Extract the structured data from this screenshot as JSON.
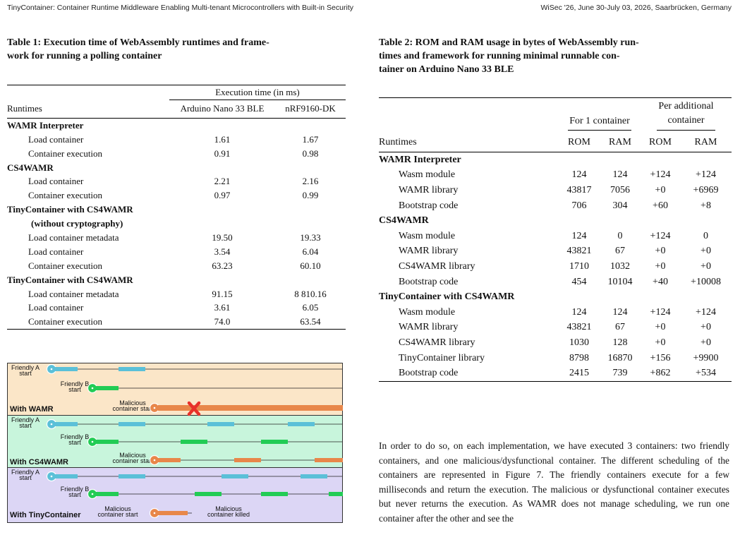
{
  "header": {
    "left": "TinyContainer: Container Runtime Middleware Enabling Multi-tenant Microcontrollers with Built-in Security",
    "right": "WiSec '26, June 30-July 03, 2026, Saarbrücken, Germany"
  },
  "table1": {
    "caption_line1": "Table 1: Execution time of WebAssembly runtimes and frame-",
    "caption_line2": "work for running a polling container",
    "group_header": "Execution time (in ms)",
    "col_runtimes": "Runtimes",
    "col_a": "Arduino Nano 33 BLE",
    "col_b": "nRF9160-DK",
    "rows": [
      {
        "label": "WAMR Interpreter",
        "group": true
      },
      {
        "label": "Load container",
        "a": "1.61",
        "b": "1.67"
      },
      {
        "label": "Container execution",
        "a": "0.91",
        "b": "0.98"
      },
      {
        "label": "CS4WAMR",
        "group": true
      },
      {
        "label": "Load container",
        "a": "2.21",
        "b": "2.16"
      },
      {
        "label": "Container execution",
        "a": "0.97",
        "b": "0.99"
      },
      {
        "label": "TinyContainer with CS4WAMR",
        "group": true
      },
      {
        "label": "(without cryptography)",
        "group": true,
        "sub": true
      },
      {
        "label": "Load container metadata",
        "a": "19.50",
        "b": "19.33"
      },
      {
        "label": "Load container",
        "a": "3.54",
        "b": "6.04"
      },
      {
        "label": "Container execution",
        "a": "63.23",
        "b": "60.10"
      },
      {
        "label": "TinyContainer with CS4WAMR",
        "group": true
      },
      {
        "label": "Load container metadata",
        "a": "91.15",
        "b": "8 810.16"
      },
      {
        "label": "Load container",
        "a": "3.61",
        "b": "6.05"
      },
      {
        "label": "Container execution",
        "a": "74.0",
        "b": "63.54"
      }
    ]
  },
  "table2": {
    "caption_line1": "Table 2: ROM and RAM usage in bytes of WebAssembly run-",
    "caption_line2": "times and framework for running minimal runnable con-",
    "caption_line3": "tainer on Arduino Nano 33 BLE",
    "group_a": "For 1 container",
    "group_b_line1": "Per additional",
    "group_b_line2": "container",
    "col_runtimes": "Runtimes",
    "col_rom": "ROM",
    "col_ram": "RAM",
    "col_rom2": "ROM",
    "col_ram2": "RAM",
    "rows": [
      {
        "label": "WAMR Interpreter",
        "group": true
      },
      {
        "label": "Wasm module",
        "rom": "124",
        "ram": "124",
        "rom2": "+124",
        "ram2": "+124"
      },
      {
        "label": "WAMR library",
        "rom": "43817",
        "ram": "7056",
        "rom2": "+0",
        "ram2": "+6969"
      },
      {
        "label": "Bootstrap code",
        "rom": "706",
        "ram": "304",
        "rom2": "+60",
        "ram2": "+8"
      },
      {
        "label": "CS4WAMR",
        "group": true
      },
      {
        "label": "Wasm module",
        "rom": "124",
        "ram": "0",
        "rom2": "+124",
        "ram2": "0"
      },
      {
        "label": "WAMR library",
        "rom": "43821",
        "ram": "67",
        "rom2": "+0",
        "ram2": "+0"
      },
      {
        "label": "CS4WAMR library",
        "rom": "1710",
        "ram": "1032",
        "rom2": "+0",
        "ram2": "+0"
      },
      {
        "label": "Bootstrap code",
        "rom": "454",
        "ram": "10104",
        "rom2": "+40",
        "ram2": "+10008"
      },
      {
        "label": "TinyContainer with CS4WAMR",
        "group": true
      },
      {
        "label": "Wasm module",
        "rom": "124",
        "ram": "124",
        "rom2": "+124",
        "ram2": "+124"
      },
      {
        "label": "WAMR library",
        "rom": "43821",
        "ram": "67",
        "rom2": "+0",
        "ram2": "+0"
      },
      {
        "label": "CS4WAMR library",
        "rom": "1030",
        "ram": "128",
        "rom2": "+0",
        "ram2": "+0"
      },
      {
        "label": "TinyContainer library",
        "rom": "8798",
        "ram": "16870",
        "rom2": "+156",
        "ram2": "+9900"
      },
      {
        "label": "Bootstrap code",
        "rom": "2415",
        "ram": "739",
        "rom2": "+862",
        "ram2": "+534"
      }
    ]
  },
  "paragraph": "In order to do so, on each implementation, we have executed 3 containers: two friendly containers, and one malicious/dysfunctional container. The different scheduling of the containers are represented in Figure 7. The friendly containers execute for a few milliseconds and return the execution. The malicious or dysfunctional container executes but never returns the execution. As WAMR does not manage scheduling, we run one container after the other and see the",
  "figure": {
    "panel1": {
      "title": "With WAMR",
      "a1": "Friendly A",
      "a2": "start",
      "b1": "Friendly B",
      "b2": "start",
      "m1": "Malicious",
      "m2": "container start"
    },
    "panel2": {
      "title": "With CS4WAMR",
      "a1": "Friendly A",
      "a2": "start",
      "b1": "Friendly B",
      "b2": "start",
      "m1": "Malicious",
      "m2": "container start"
    },
    "panel3": {
      "title": "With TinyContainer",
      "a1": "Friendly A",
      "a2": "start",
      "b1": "Friendly B",
      "b2": "start",
      "m1": "Malicious",
      "m2": "container start",
      "k1": "Malicious",
      "k2": "container killed"
    },
    "colors": {
      "blue": "#5bc0d8",
      "green": "#22cc55",
      "orange": "#e8874a",
      "kill": "#e8312a",
      "bg1": "#fbe6c8",
      "bg2": "#c8f5dc",
      "bg3": "#dcd6f5"
    }
  }
}
